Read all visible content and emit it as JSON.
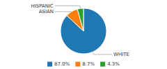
{
  "chart_data": {
    "type": "pie",
    "categories": [
      "WHITE",
      "ASIAN",
      "HISPANIC"
    ],
    "values": [
      87.0,
      8.7,
      4.3
    ],
    "value_labels": [
      "87.0%",
      "8.7%",
      "4.3%"
    ],
    "legend": "bottom"
  }
}
